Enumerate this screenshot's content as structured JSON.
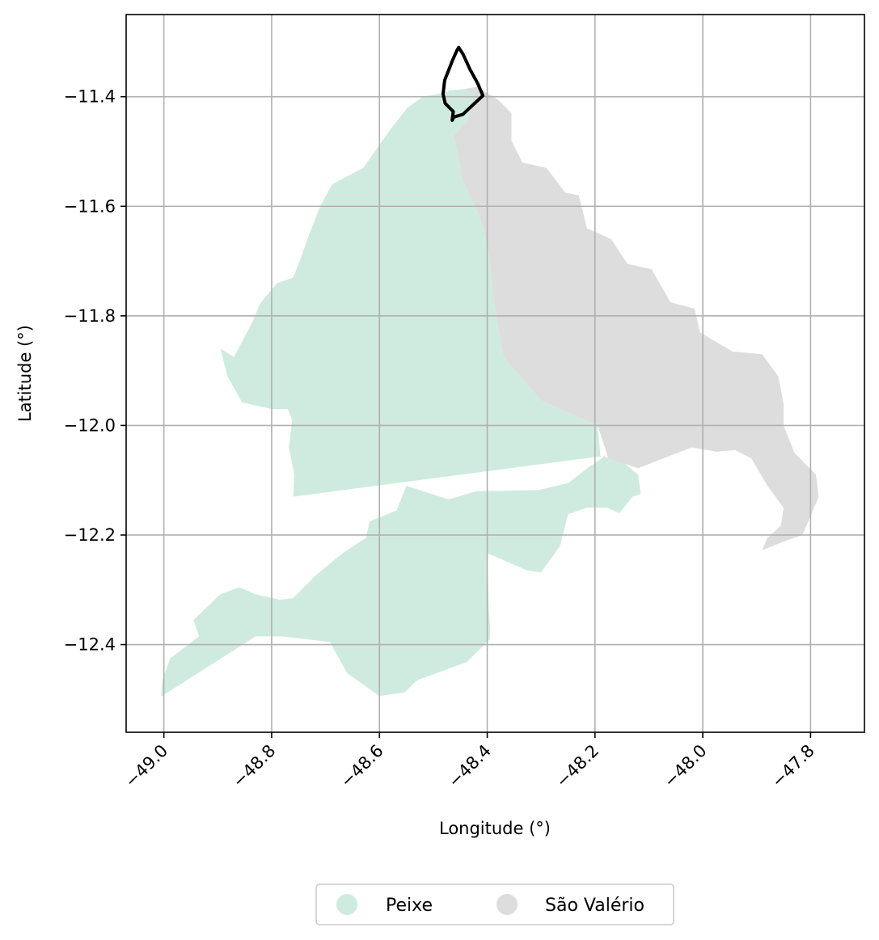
{
  "chart_data": {
    "type": "map",
    "xlabel": "Longitude (°)",
    "ylabel": "Latitude (°)",
    "xlim": [
      -49.07,
      -47.7
    ],
    "ylim": [
      -12.56,
      -11.25
    ],
    "xticks": [
      -49.0,
      -48.8,
      -48.6,
      -48.4,
      -48.2,
      -48.0,
      -47.8
    ],
    "yticks": [
      -11.4,
      -11.6,
      -11.8,
      -12.0,
      -12.2,
      -12.4
    ],
    "xtick_labels": [
      "−49.0",
      "−48.8",
      "−48.6",
      "−48.4",
      "−48.2",
      "−48.0",
      "−47.8"
    ],
    "ytick_labels": [
      "−11.4",
      "−11.6",
      "−11.8",
      "−12.0",
      "−12.2",
      "−12.4"
    ],
    "grid": true,
    "legend_position": "bottom-center, below plot",
    "regions": [
      {
        "name": "Peixe",
        "color": "#cfebdf",
        "outline": [
          [
            -48.485,
            -11.394
          ],
          [
            -48.468,
            -11.388
          ],
          [
            -48.442,
            -11.386
          ],
          [
            -48.424,
            -11.394
          ],
          [
            -48.437,
            -11.445
          ],
          [
            -48.462,
            -11.47
          ],
          [
            -48.453,
            -11.515
          ],
          [
            -48.445,
            -11.555
          ],
          [
            -48.413,
            -11.62
          ],
          [
            -48.398,
            -11.68
          ],
          [
            -48.385,
            -11.79
          ],
          [
            -48.37,
            -11.875
          ],
          [
            -48.3,
            -11.955
          ],
          [
            -48.195,
            -12.0
          ],
          [
            -48.19,
            -12.055
          ],
          [
            -48.15,
            -12.065
          ],
          [
            -48.12,
            -12.09
          ],
          [
            -48.115,
            -12.125
          ],
          [
            -48.13,
            -12.13
          ],
          [
            -48.155,
            -12.16
          ],
          [
            -48.178,
            -12.15
          ],
          [
            -48.215,
            -12.15
          ],
          [
            -48.25,
            -12.162
          ],
          [
            -48.265,
            -12.22
          ],
          [
            -48.3,
            -12.268
          ],
          [
            -48.325,
            -12.265
          ],
          [
            -48.4,
            -12.233
          ],
          [
            -48.397,
            -12.335
          ],
          [
            -48.395,
            -12.365
          ],
          [
            -48.395,
            -12.39
          ],
          [
            -48.438,
            -12.432
          ],
          [
            -48.53,
            -12.465
          ],
          [
            -48.553,
            -12.487
          ],
          [
            -48.6,
            -12.494
          ],
          [
            -48.66,
            -12.452
          ],
          [
            -48.692,
            -12.395
          ],
          [
            -48.78,
            -12.385
          ],
          [
            -48.83,
            -12.385
          ],
          [
            -49.005,
            -12.495
          ],
          [
            -49.003,
            -12.465
          ],
          [
            -48.988,
            -12.425
          ],
          [
            -48.935,
            -12.385
          ],
          [
            -48.945,
            -12.355
          ],
          [
            -48.895,
            -12.308
          ],
          [
            -48.86,
            -12.295
          ],
          [
            -48.83,
            -12.308
          ],
          [
            -48.785,
            -12.318
          ],
          [
            -48.76,
            -12.315
          ],
          [
            -48.72,
            -12.275
          ],
          [
            -48.668,
            -12.233
          ],
          [
            -48.625,
            -12.205
          ],
          [
            -48.618,
            -12.175
          ],
          [
            -48.568,
            -12.155
          ],
          [
            -48.55,
            -12.11
          ],
          [
            -48.472,
            -12.135
          ],
          [
            -48.42,
            -12.12
          ],
          [
            -48.305,
            -12.118
          ],
          [
            -48.25,
            -12.105
          ],
          [
            -48.21,
            -12.075
          ],
          [
            -48.18,
            -12.055
          ],
          [
            -48.76,
            -12.13
          ],
          [
            -48.758,
            -12.09
          ],
          [
            -48.768,
            -12.04
          ],
          [
            -48.762,
            -11.99
          ],
          [
            -48.77,
            -11.97
          ],
          [
            -48.8,
            -11.97
          ],
          [
            -48.855,
            -11.958
          ],
          [
            -48.882,
            -11.91
          ],
          [
            -48.895,
            -11.86
          ],
          [
            -48.87,
            -11.875
          ],
          [
            -48.835,
            -11.81
          ],
          [
            -48.822,
            -11.778
          ],
          [
            -48.79,
            -11.74
          ],
          [
            -48.76,
            -11.73
          ],
          [
            -48.748,
            -11.7
          ],
          [
            -48.73,
            -11.65
          ],
          [
            -48.71,
            -11.6
          ],
          [
            -48.688,
            -11.56
          ],
          [
            -48.63,
            -11.53
          ],
          [
            -48.58,
            -11.46
          ],
          [
            -48.548,
            -11.42
          ],
          [
            -48.52,
            -11.4
          ]
        ]
      },
      {
        "name": "São Valério",
        "color": "#dddddd",
        "outline": [
          [
            -48.442,
            -11.386
          ],
          [
            -48.42,
            -11.382
          ],
          [
            -48.38,
            -11.405
          ],
          [
            -48.355,
            -11.43
          ],
          [
            -48.355,
            -11.48
          ],
          [
            -48.335,
            -11.52
          ],
          [
            -48.29,
            -11.53
          ],
          [
            -48.255,
            -11.575
          ],
          [
            -48.23,
            -11.58
          ],
          [
            -48.215,
            -11.64
          ],
          [
            -48.17,
            -11.66
          ],
          [
            -48.14,
            -11.705
          ],
          [
            -48.095,
            -11.715
          ],
          [
            -48.06,
            -11.775
          ],
          [
            -48.015,
            -11.787
          ],
          [
            -48.005,
            -11.83
          ],
          [
            -47.945,
            -11.865
          ],
          [
            -47.89,
            -11.87
          ],
          [
            -47.86,
            -11.91
          ],
          [
            -47.85,
            -11.96
          ],
          [
            -47.85,
            -12.0
          ],
          [
            -47.83,
            -12.05
          ],
          [
            -47.79,
            -12.09
          ],
          [
            -47.785,
            -12.13
          ],
          [
            -47.8,
            -12.165
          ],
          [
            -47.815,
            -12.2
          ],
          [
            -47.845,
            -12.21
          ],
          [
            -47.89,
            -12.228
          ],
          [
            -47.88,
            -12.205
          ],
          [
            -47.855,
            -12.183
          ],
          [
            -47.85,
            -12.15
          ],
          [
            -47.88,
            -12.11
          ],
          [
            -47.91,
            -12.06
          ],
          [
            -47.94,
            -12.045
          ],
          [
            -47.975,
            -12.048
          ],
          [
            -48.02,
            -12.04
          ],
          [
            -48.06,
            -12.055
          ],
          [
            -48.12,
            -12.078
          ],
          [
            -48.175,
            -12.06
          ],
          [
            -48.195,
            -12.0
          ],
          [
            -48.3,
            -11.955
          ],
          [
            -48.37,
            -11.875
          ],
          [
            -48.385,
            -11.79
          ],
          [
            -48.398,
            -11.68
          ],
          [
            -48.413,
            -11.62
          ],
          [
            -48.445,
            -11.555
          ],
          [
            -48.453,
            -11.515
          ],
          [
            -48.462,
            -11.47
          ],
          [
            -48.437,
            -11.445
          ],
          [
            -48.424,
            -11.394
          ]
        ]
      }
    ],
    "highlight_outline": {
      "color": "#000000",
      "points": [
        [
          -48.453,
          -11.31
        ],
        [
          -48.445,
          -11.322
        ],
        [
          -48.432,
          -11.35
        ],
        [
          -48.418,
          -11.375
        ],
        [
          -48.408,
          -11.398
        ],
        [
          -48.432,
          -11.42
        ],
        [
          -48.445,
          -11.432
        ],
        [
          -48.462,
          -11.437
        ],
        [
          -48.465,
          -11.443
        ],
        [
          -48.463,
          -11.427
        ],
        [
          -48.478,
          -11.412
        ],
        [
          -48.482,
          -11.395
        ],
        [
          -48.479,
          -11.37
        ],
        [
          -48.465,
          -11.335
        ],
        [
          -48.456,
          -11.315
        ],
        [
          -48.453,
          -11.31
        ]
      ]
    }
  },
  "legend": {
    "items": [
      {
        "label": "Peixe",
        "color": "#cfebdf"
      },
      {
        "label": "São Valério",
        "color": "#dddddd"
      }
    ]
  }
}
